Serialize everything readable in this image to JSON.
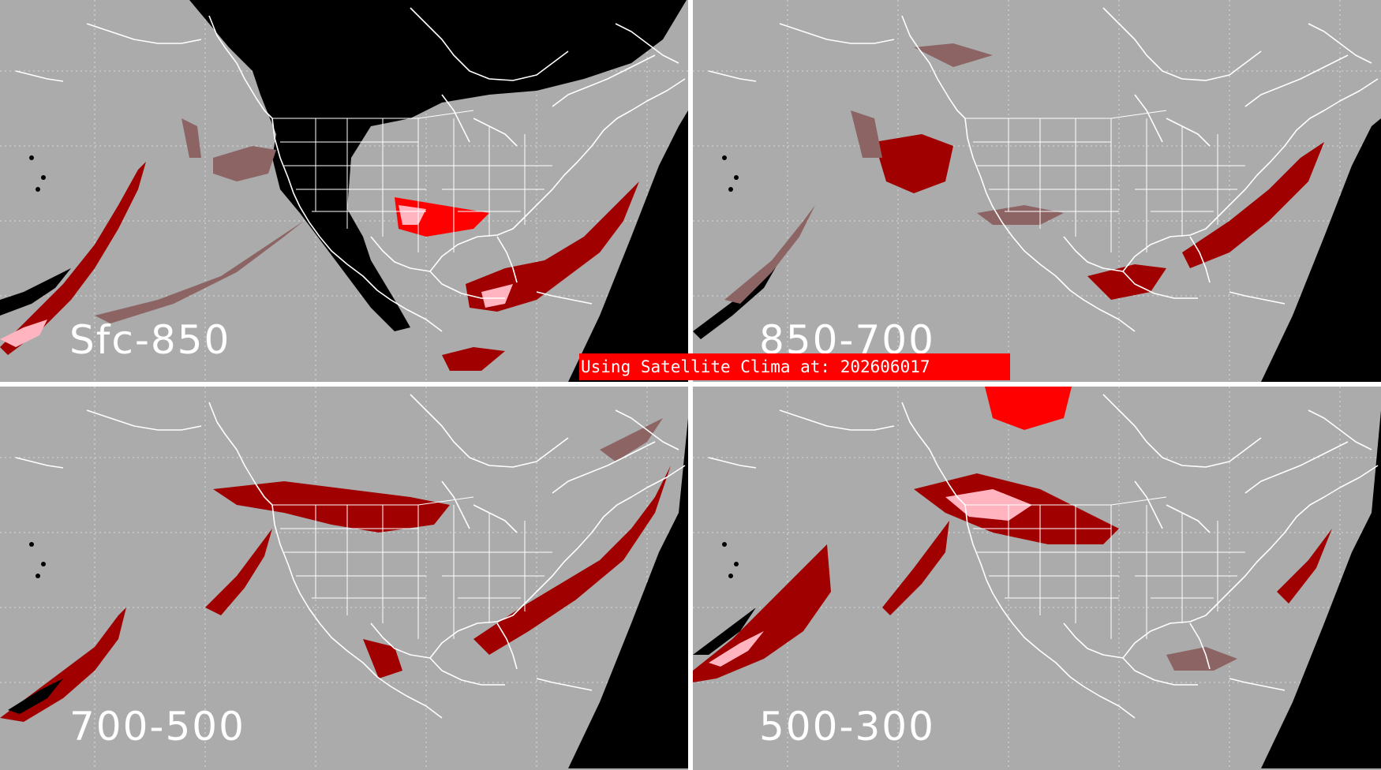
{
  "banner": {
    "text": "Using Satellite Clima at: 202606017"
  },
  "colors": {
    "background": "#ababab",
    "divider": "#ffffff",
    "no_data": "#000000",
    "low": "#8c6464",
    "moderate": "#a00000",
    "high": "#ff0000",
    "very_high": "#ffb4c0",
    "coastline": "#ffffff",
    "grid": "#d8d8d8"
  },
  "panels": [
    {
      "id": "sfc-850",
      "label": "Sfc-850"
    },
    {
      "id": "850-700",
      "label": "850-700"
    },
    {
      "id": "700-500",
      "label": "700-500"
    },
    {
      "id": "500-300",
      "label": "500-300"
    }
  ]
}
